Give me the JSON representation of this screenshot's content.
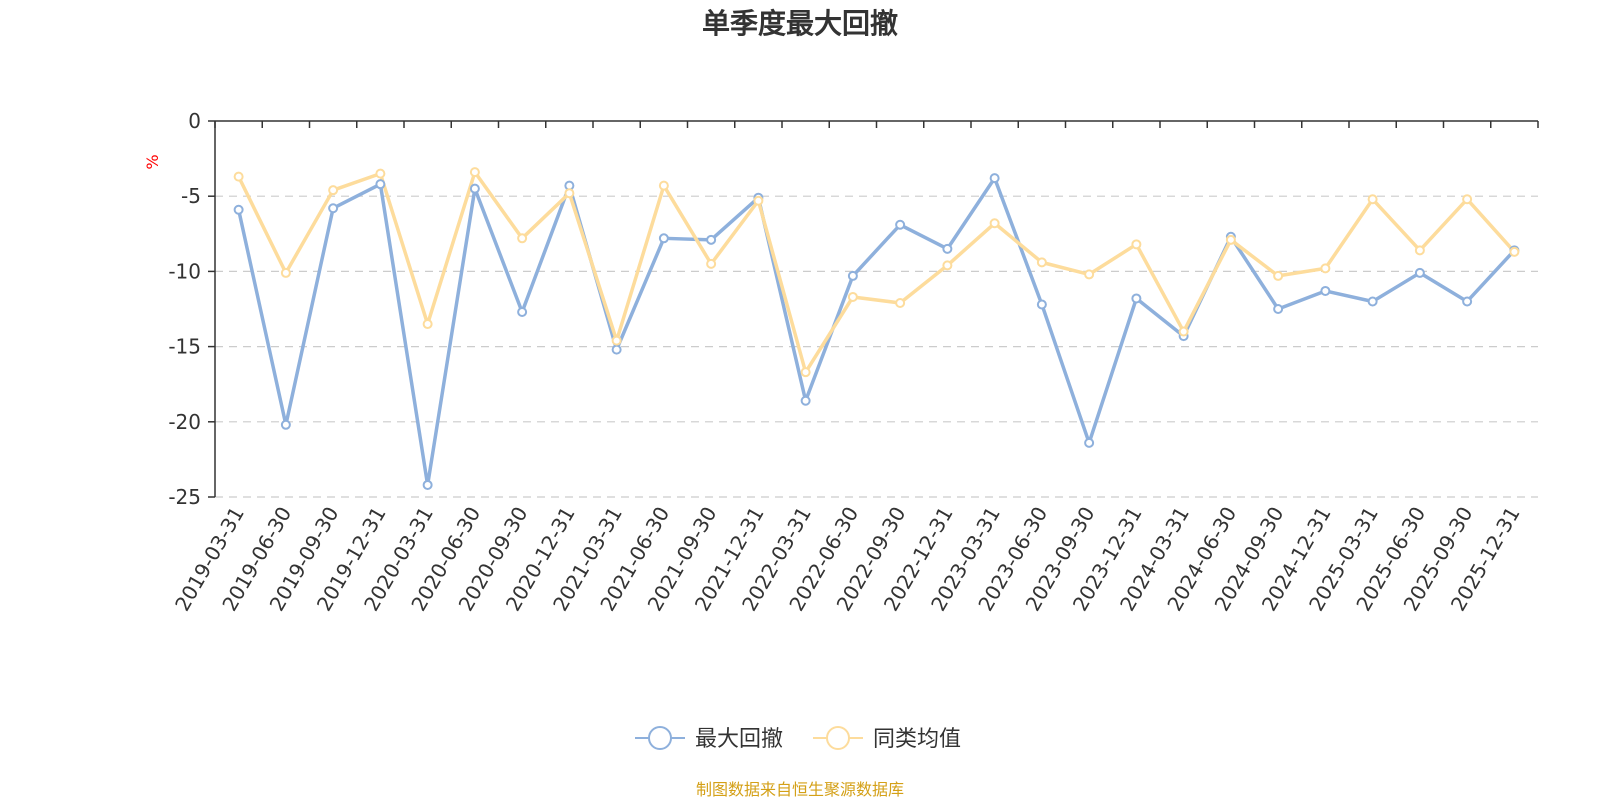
{
  "chart_data": {
    "type": "line",
    "title": "单季度最大回撤",
    "ylabel": "%",
    "ylim": [
      -25,
      0
    ],
    "yticks": [
      0,
      -5,
      -10,
      -15,
      -20,
      -25
    ],
    "grid": true,
    "legend_position": "bottom",
    "categories": [
      "2019-03-31",
      "2019-06-30",
      "2019-09-30",
      "2019-12-31",
      "2020-03-31",
      "2020-06-30",
      "2020-09-30",
      "2020-12-31",
      "2021-03-31",
      "2021-06-30",
      "2021-09-30",
      "2021-12-31",
      "2022-03-31",
      "2022-06-30",
      "2022-09-30",
      "2022-12-31",
      "2023-03-31",
      "2023-06-30",
      "2023-09-30",
      "2023-12-31",
      "2024-03-31",
      "2024-06-30",
      "2024-09-30",
      "2024-12-31",
      "2025-03-31",
      "2025-06-30",
      "2025-09-30",
      "2025-12-31"
    ],
    "series": [
      {
        "name": "最大回撤",
        "color": "#8eb0dc",
        "values": [
          -5.9,
          -20.2,
          -5.8,
          -4.2,
          -24.2,
          -4.5,
          -12.7,
          -4.3,
          -15.2,
          -7.8,
          -7.9,
          -5.1,
          -18.6,
          -10.3,
          -6.9,
          -8.5,
          -3.8,
          -12.2,
          -21.4,
          -11.8,
          -14.3,
          -7.7,
          -12.5,
          -11.3,
          -12.0,
          -10.1,
          -12.0,
          -8.6
        ]
      },
      {
        "name": "同类均值",
        "color": "#fddc9c",
        "values": [
          -3.7,
          -10.1,
          -4.6,
          -3.5,
          -13.5,
          -3.4,
          -7.8,
          -4.8,
          -14.6,
          -4.3,
          -9.5,
          -5.3,
          -16.7,
          -11.7,
          -12.1,
          -9.6,
          -6.8,
          -9.4,
          -10.2,
          -8.2,
          -14.0,
          -7.9,
          -10.3,
          -9.8,
          -5.2,
          -8.6,
          -5.2,
          -8.7
        ]
      }
    ]
  },
  "source_text": "制图数据来自恒生聚源数据库",
  "colors": {
    "axis": "#333333",
    "grid": "#cccccc",
    "unit": "#ff0000",
    "source": "#d4a017"
  }
}
